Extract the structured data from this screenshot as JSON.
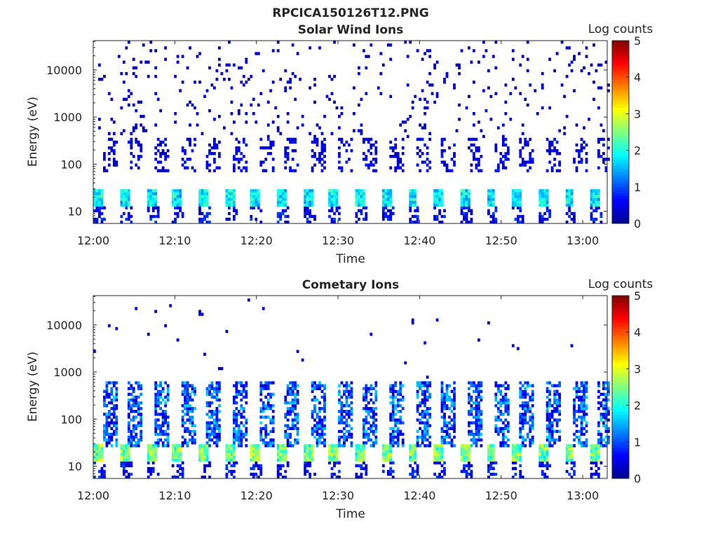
{
  "figure": {
    "title": "RPCICA150126T12.PNG"
  },
  "colors": {
    "background": "#ffffff",
    "axis": "#262626",
    "colormap": [
      "#00008f",
      "#0000ff",
      "#0080ff",
      "#00ffff",
      "#80ff80",
      "#ffff00",
      "#ff8000",
      "#ff0000",
      "#800000"
    ]
  },
  "chart_data": [
    {
      "type": "heatmap",
      "title": "Solar Wind Ions",
      "xlabel": "Time",
      "ylabel": "Energy (eV)",
      "yscale": "log",
      "ylim": [
        5.5,
        42000
      ],
      "xlim_minutes_after_12": [
        0,
        63
      ],
      "xticks": [
        "12:00",
        "12:10",
        "12:20",
        "12:30",
        "12:40",
        "12:50",
        "13:00"
      ],
      "yticks": [
        "10",
        "100",
        "1000",
        "10000"
      ],
      "colorbar": {
        "label": "Log counts",
        "range": [
          0,
          5
        ],
        "ticks": [
          "0",
          "1",
          "2",
          "3",
          "4",
          "5"
        ]
      },
      "sweep_period_min": 3.2,
      "peak_energy_ev": [
        12,
        28
      ],
      "peak_log_counts": 2.3,
      "band_energy_ev": [
        70,
        350
      ],
      "sparse_energy_ev": [
        350,
        40000
      ]
    },
    {
      "type": "heatmap",
      "title": "Cometary Ions",
      "xlabel": "Time",
      "ylabel": "Energy (eV)",
      "yscale": "log",
      "ylim": [
        5.5,
        42000
      ],
      "xlim_minutes_after_12": [
        0,
        63
      ],
      "xticks": [
        "12:00",
        "12:10",
        "12:20",
        "12:30",
        "12:40",
        "12:50",
        "13:00"
      ],
      "yticks": [
        "10",
        "100",
        "1000",
        "10000"
      ],
      "colorbar": {
        "label": "Log counts",
        "range": [
          0,
          5
        ],
        "ticks": [
          "0",
          "1",
          "2",
          "3",
          "4",
          "5"
        ]
      },
      "sweep_period_min": 3.2,
      "peak_energy_ev": [
        12,
        28
      ],
      "peak_log_counts": 3.1,
      "band_energy_ev": [
        25,
        600
      ],
      "sparse_energy_ev": [
        600,
        30000
      ]
    }
  ]
}
